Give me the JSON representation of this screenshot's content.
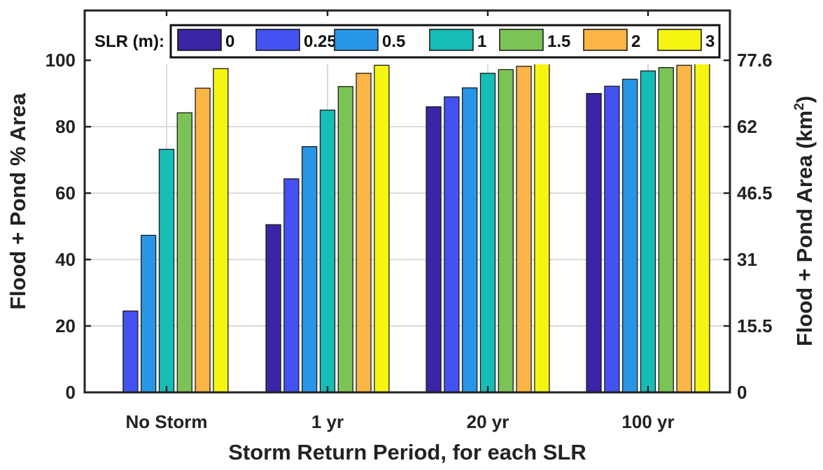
{
  "chart_data": {
    "type": "bar",
    "categories": [
      "No Storm",
      "1 yr",
      "20 yr",
      "100 yr"
    ],
    "xlabel": "Storm Return Period, for each SLR",
    "ylabel": "Flood + Pond % Area",
    "ylabel_right_base": "Flood + Pond Area (km",
    "ylabel_right_sup": "2",
    "ylabel_right_end": ")",
    "ylim": [
      0,
      115
    ],
    "yticks": [
      0,
      20,
      40,
      60,
      80,
      100
    ],
    "yticks_right": [
      {
        "at": 0,
        "label": "0"
      },
      {
        "at": 20,
        "label": "15.5"
      },
      {
        "at": 40,
        "label": "31"
      },
      {
        "at": 60,
        "label": "46.5"
      },
      {
        "at": 80,
        "label": "62"
      },
      {
        "at": 100,
        "label": "77.6"
      }
    ],
    "grid": true,
    "legend_title": "SLR (m):",
    "legend_position": "top",
    "series": [
      {
        "name": "0",
        "color": "#3b24a6",
        "values": [
          0,
          50.5,
          86,
          90
        ]
      },
      {
        "name": "0.25",
        "color": "#4352f0",
        "values": [
          24.5,
          64.3,
          89,
          92.2
        ]
      },
      {
        "name": "0.5",
        "color": "#2896e6",
        "values": [
          47.3,
          74,
          91.7,
          94.3
        ]
      },
      {
        "name": "1",
        "color": "#17bcb6",
        "values": [
          73.2,
          85,
          96.1,
          96.8
        ]
      },
      {
        "name": "1.5",
        "color": "#7cc356",
        "values": [
          84.2,
          92.1,
          97.2,
          97.8
        ]
      },
      {
        "name": "2",
        "color": "#fbb446",
        "values": [
          91.6,
          96.1,
          98.2,
          98.5
        ]
      },
      {
        "name": "3",
        "color": "#f6f511",
        "values": [
          97.5,
          98.5,
          99.3,
          99.4
        ]
      }
    ]
  }
}
